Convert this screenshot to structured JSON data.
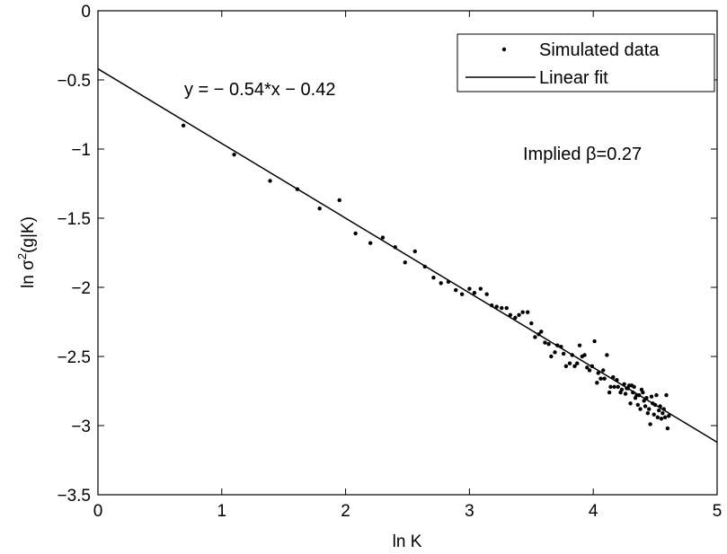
{
  "chart_data": {
    "type": "scatter",
    "xlabel": "ln K",
    "ylabel_main": "ln σ",
    "ylabel_sup": "2",
    "ylabel_tail": "(g|K)",
    "xlim": [
      0,
      5
    ],
    "ylim": [
      -3.5,
      0
    ],
    "xticks": [
      0,
      1,
      2,
      3,
      4,
      5
    ],
    "yticks": [
      0,
      -0.5,
      -1,
      -1.5,
      -2,
      -2.5,
      -3,
      -3.5
    ],
    "xtick_labels": [
      "0",
      "1",
      "2",
      "3",
      "4",
      "5"
    ],
    "ytick_labels": [
      "0",
      "−0.5",
      "−1",
      "−1.5",
      "−2",
      "−2.5",
      "−3",
      "−3.5"
    ],
    "grid": false,
    "legend_placement": "top-right",
    "series": [
      {
        "name": "Simulated data",
        "kind": "points",
        "color": "#000000",
        "points": [
          [
            0.69,
            -0.83
          ],
          [
            1.1,
            -1.04
          ],
          [
            1.39,
            -1.23
          ],
          [
            1.61,
            -1.29
          ],
          [
            1.79,
            -1.43
          ],
          [
            1.95,
            -1.37
          ],
          [
            2.08,
            -1.61
          ],
          [
            2.2,
            -1.68
          ],
          [
            2.3,
            -1.64
          ],
          [
            2.4,
            -1.71
          ],
          [
            2.48,
            -1.82
          ],
          [
            2.56,
            -1.74
          ],
          [
            2.64,
            -1.85
          ],
          [
            2.71,
            -1.93
          ],
          [
            2.77,
            -1.97
          ],
          [
            2.83,
            -1.96
          ],
          [
            2.89,
            -2.02
          ],
          [
            2.94,
            -2.05
          ],
          [
            3.0,
            -2.01
          ],
          [
            3.04,
            -2.04
          ],
          [
            3.09,
            -2.01
          ],
          [
            3.14,
            -2.05
          ],
          [
            3.18,
            -2.13
          ],
          [
            3.22,
            -2.14
          ],
          [
            3.26,
            -2.15
          ],
          [
            3.3,
            -2.15
          ],
          [
            3.33,
            -2.2
          ],
          [
            3.37,
            -2.22
          ],
          [
            3.4,
            -2.2
          ],
          [
            3.43,
            -2.18
          ],
          [
            3.47,
            -2.18
          ],
          [
            3.5,
            -2.26
          ],
          [
            3.53,
            -2.36
          ],
          [
            3.56,
            -2.34
          ],
          [
            3.58,
            -2.32
          ],
          [
            3.61,
            -2.4
          ],
          [
            3.64,
            -2.41
          ],
          [
            3.66,
            -2.5
          ],
          [
            3.69,
            -2.47
          ],
          [
            3.71,
            -2.42
          ],
          [
            3.74,
            -2.43
          ],
          [
            3.76,
            -2.48
          ],
          [
            3.78,
            -2.57
          ],
          [
            3.81,
            -2.55
          ],
          [
            3.83,
            -2.49
          ],
          [
            3.85,
            -2.57
          ],
          [
            3.87,
            -2.55
          ],
          [
            3.89,
            -2.42
          ],
          [
            3.91,
            -2.5
          ],
          [
            3.93,
            -2.49
          ],
          [
            3.95,
            -2.58
          ],
          [
            3.97,
            -2.6
          ],
          [
            3.99,
            -2.57
          ],
          [
            4.01,
            -2.39
          ],
          [
            4.03,
            -2.69
          ],
          [
            4.04,
            -2.62
          ],
          [
            4.06,
            -2.66
          ],
          [
            4.08,
            -2.6
          ],
          [
            4.09,
            -2.66
          ],
          [
            4.11,
            -2.49
          ],
          [
            4.13,
            -2.76
          ],
          [
            4.14,
            -2.72
          ],
          [
            4.16,
            -2.65
          ],
          [
            4.17,
            -2.72
          ],
          [
            4.19,
            -2.67
          ],
          [
            4.2,
            -2.72
          ],
          [
            4.22,
            -2.76
          ],
          [
            4.23,
            -2.74
          ],
          [
            4.25,
            -2.7
          ],
          [
            4.26,
            -2.77
          ],
          [
            4.28,
            -2.73
          ],
          [
            4.29,
            -2.71
          ],
          [
            4.3,
            -2.84
          ],
          [
            4.32,
            -2.76
          ],
          [
            4.33,
            -2.72
          ],
          [
            4.34,
            -2.8
          ],
          [
            4.36,
            -2.85
          ],
          [
            4.37,
            -2.78
          ],
          [
            4.38,
            -2.88
          ],
          [
            4.39,
            -2.74
          ],
          [
            4.41,
            -2.82
          ],
          [
            4.42,
            -2.86
          ],
          [
            4.43,
            -2.8
          ],
          [
            4.44,
            -2.91
          ],
          [
            4.45,
            -2.88
          ],
          [
            4.47,
            -2.79
          ],
          [
            4.48,
            -2.84
          ],
          [
            4.49,
            -2.92
          ],
          [
            4.5,
            -2.85
          ],
          [
            4.51,
            -2.78
          ],
          [
            4.52,
            -2.94
          ],
          [
            4.53,
            -2.89
          ],
          [
            4.54,
            -2.86
          ],
          [
            4.55,
            -2.95
          ],
          [
            4.56,
            -2.91
          ],
          [
            4.57,
            -2.88
          ],
          [
            4.58,
            -2.94
          ],
          [
            4.59,
            -2.78
          ],
          [
            4.6,
            -3.02
          ],
          [
            4.61,
            -2.93
          ],
          [
            4.46,
            -2.99
          ],
          [
            4.4,
            -2.76
          ],
          [
            4.35,
            -2.78
          ],
          [
            4.31,
            -2.71
          ],
          [
            4.27,
            -2.73
          ]
        ]
      },
      {
        "name": "Linear fit",
        "kind": "line",
        "color": "#000000",
        "slope": -0.54,
        "intercept": -0.42
      }
    ],
    "annotations": {
      "equation": "y = − 0.54*x − 0.42",
      "implied_beta": "Implied β=0.27"
    }
  }
}
